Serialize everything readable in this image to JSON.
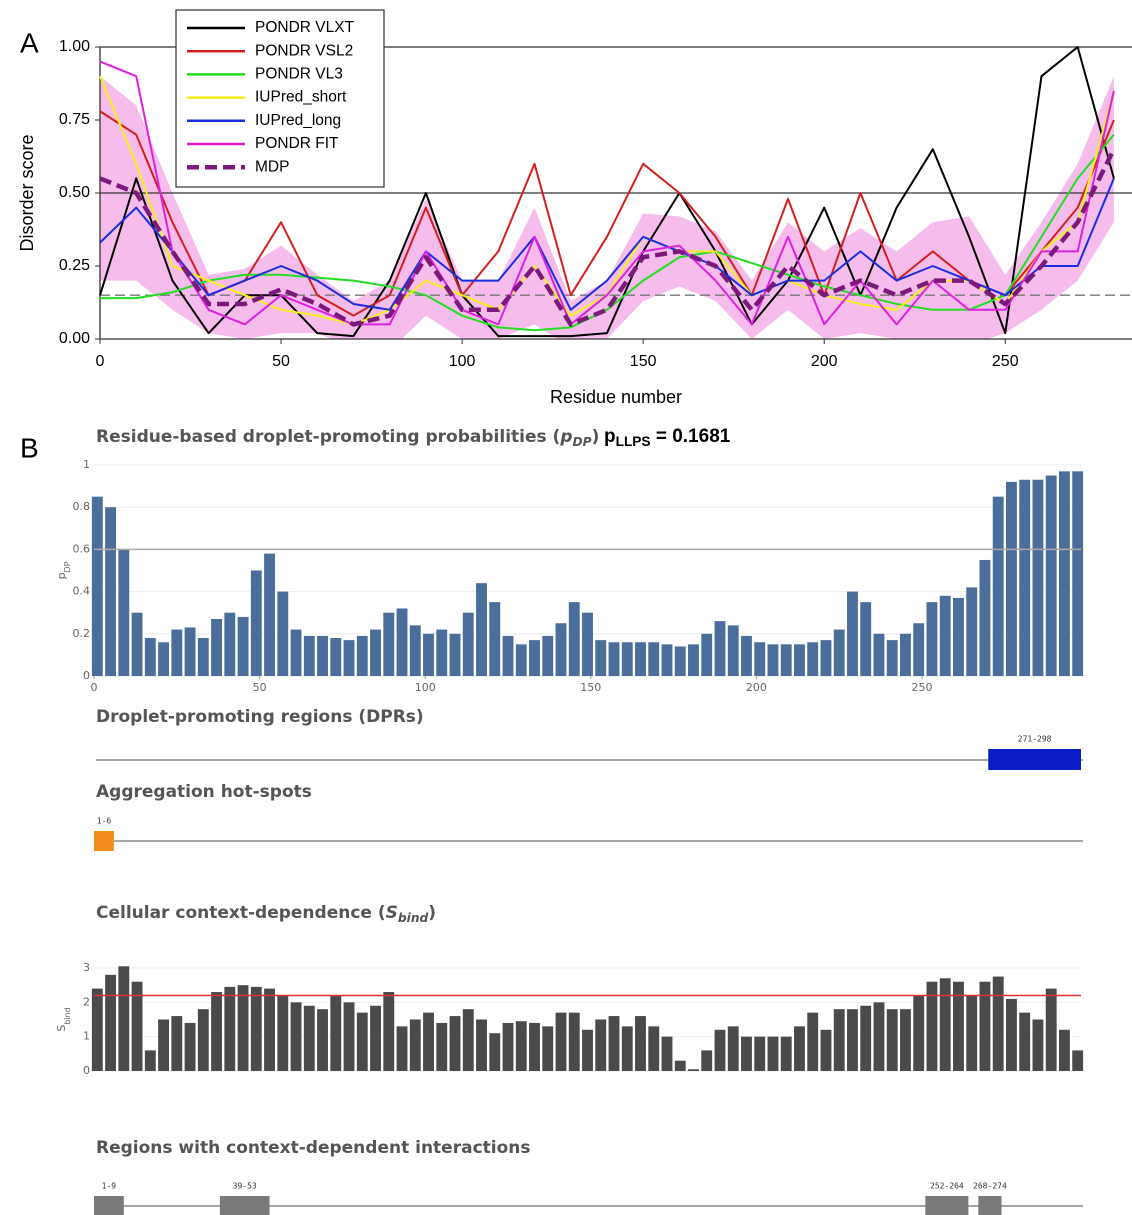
{
  "chart_data": [
    {
      "type": "line",
      "panel": "A",
      "xlabel": "Residue number",
      "ylabel": "Disorder score",
      "xlim": [
        0,
        285
      ],
      "ylim": [
        0,
        1
      ],
      "xticks": [
        0,
        50,
        100,
        150,
        200,
        250
      ],
      "yticks": [
        {
          "value": 0,
          "label": "0.00"
        },
        {
          "value": 0.25,
          "label": "0.25"
        },
        {
          "value": 0.5,
          "label": "0.50"
        },
        {
          "value": 0.75,
          "label": "0.75"
        },
        {
          "value": 1,
          "label": "1.00"
        }
      ],
      "reference_lines": [
        0.5,
        0.15
      ],
      "reference_styles": [
        "solid",
        "dashed"
      ],
      "band_color": "#f6bdec",
      "x": [
        0,
        10,
        20,
        30,
        40,
        50,
        60,
        70,
        80,
        90,
        100,
        110,
        120,
        130,
        140,
        150,
        160,
        170,
        180,
        190,
        200,
        210,
        220,
        230,
        240,
        250,
        260,
        270,
        280
      ],
      "series": [
        {
          "name": "PONDR VLXT",
          "color": "#000000",
          "values": [
            0.15,
            0.55,
            0.2,
            0.02,
            0.15,
            0.15,
            0.02,
            0.01,
            0.2,
            0.5,
            0.15,
            0.01,
            0.01,
            0.01,
            0.02,
            0.3,
            0.5,
            0.3,
            0.05,
            0.2,
            0.45,
            0.15,
            0.45,
            0.65,
            0.35,
            0.02,
            0.9,
            1.0,
            0.55
          ]
        },
        {
          "name": "PONDR VSL2",
          "color": "#d41f1f",
          "values": [
            0.78,
            0.7,
            0.4,
            0.15,
            0.2,
            0.4,
            0.15,
            0.08,
            0.15,
            0.45,
            0.15,
            0.3,
            0.6,
            0.15,
            0.35,
            0.6,
            0.5,
            0.35,
            0.15,
            0.48,
            0.15,
            0.5,
            0.2,
            0.3,
            0.2,
            0.15,
            0.3,
            0.45,
            0.75
          ]
        },
        {
          "name": "PONDR VL3",
          "color": "#22dd22",
          "values": [
            0.14,
            0.14,
            0.16,
            0.2,
            0.22,
            0.22,
            0.21,
            0.2,
            0.18,
            0.15,
            0.08,
            0.04,
            0.03,
            0.04,
            0.1,
            0.2,
            0.28,
            0.3,
            0.26,
            0.22,
            0.18,
            0.15,
            0.12,
            0.1,
            0.1,
            0.15,
            0.35,
            0.55,
            0.7
          ]
        },
        {
          "name": "IUPred_short",
          "color": "#f5f01a",
          "values": [
            0.9,
            0.6,
            0.25,
            0.2,
            0.15,
            0.1,
            0.08,
            0.05,
            0.1,
            0.2,
            0.15,
            0.1,
            0.25,
            0.08,
            0.15,
            0.35,
            0.3,
            0.3,
            0.15,
            0.2,
            0.15,
            0.12,
            0.1,
            0.2,
            0.2,
            0.12,
            0.3,
            0.4,
            0.85
          ]
        },
        {
          "name": "IUPred_long",
          "color": "#1a2ee0",
          "values": [
            0.33,
            0.45,
            0.3,
            0.15,
            0.2,
            0.25,
            0.2,
            0.12,
            0.1,
            0.3,
            0.2,
            0.2,
            0.35,
            0.1,
            0.2,
            0.35,
            0.3,
            0.25,
            0.15,
            0.2,
            0.2,
            0.3,
            0.2,
            0.25,
            0.2,
            0.15,
            0.25,
            0.25,
            0.55
          ]
        },
        {
          "name": "PONDR FIT",
          "color": "#e020e0",
          "values": [
            0.95,
            0.9,
            0.3,
            0.1,
            0.05,
            0.15,
            0.1,
            0.05,
            0.05,
            0.3,
            0.1,
            0.05,
            0.35,
            0.05,
            0.15,
            0.3,
            0.32,
            0.2,
            0.05,
            0.35,
            0.05,
            0.2,
            0.05,
            0.2,
            0.1,
            0.1,
            0.3,
            0.3,
            0.85
          ]
        },
        {
          "name": "MDP",
          "color": "#7b1a7b",
          "line_style": "dashed",
          "values": [
            0.55,
            0.5,
            0.3,
            0.12,
            0.12,
            0.17,
            0.12,
            0.05,
            0.08,
            0.28,
            0.1,
            0.1,
            0.25,
            0.05,
            0.1,
            0.28,
            0.3,
            0.25,
            0.1,
            0.25,
            0.15,
            0.2,
            0.15,
            0.2,
            0.2,
            0.12,
            0.25,
            0.4,
            0.65
          ],
          "error": [
            0.35,
            0.3,
            0.2,
            0.1,
            0.12,
            0.15,
            0.1,
            0.08,
            0.12,
            0.2,
            0.1,
            0.1,
            0.2,
            0.08,
            0.1,
            0.15,
            0.12,
            0.12,
            0.1,
            0.15,
            0.15,
            0.18,
            0.15,
            0.2,
            0.22,
            0.1,
            0.15,
            0.2,
            0.25
          ]
        }
      ]
    },
    {
      "type": "bar",
      "panel": "B",
      "title_parts": [
        {
          "text": "Residue-based droplet-promoting probabilities (",
          "style": "normal"
        },
        {
          "text": "p",
          "style": "italic"
        },
        {
          "text": "DP",
          "style": "italic-sub"
        },
        {
          "text": ")",
          "style": "normal"
        }
      ],
      "annotation_parts": [
        {
          "text": "p",
          "style": "normal"
        },
        {
          "text": "LLPS",
          "style": "sub"
        },
        {
          "text": " = 0.1681",
          "style": "normal"
        }
      ],
      "ylabel_parts": [
        {
          "text": "p",
          "style": "normal"
        },
        {
          "text": "DP",
          "style": "sub"
        }
      ],
      "xlim": [
        0,
        298
      ],
      "ylim": [
        0,
        1
      ],
      "xticks": [
        0,
        50,
        100,
        150,
        200,
        250
      ],
      "yticks": [
        0,
        0.2,
        0.4,
        0.6,
        0.8,
        1
      ],
      "threshold": 0.6,
      "threshold_color": "#aaaaaa",
      "color": "#4a6d9a",
      "grid": true,
      "x": [
        1,
        5,
        9,
        13,
        17,
        21,
        25,
        29,
        33,
        37,
        41,
        45,
        49,
        53,
        57,
        61,
        65,
        69,
        73,
        77,
        81,
        85,
        89,
        93,
        97,
        101,
        105,
        109,
        113,
        117,
        121,
        125,
        129,
        133,
        137,
        141,
        145,
        149,
        153,
        157,
        161,
        165,
        169,
        173,
        177,
        181,
        185,
        189,
        193,
        197,
        201,
        205,
        209,
        213,
        217,
        221,
        225,
        229,
        233,
        237,
        241,
        245,
        249,
        253,
        257,
        261,
        265,
        269,
        273,
        277,
        281,
        285,
        289,
        293,
        297
      ],
      "values": [
        0.85,
        0.8,
        0.6,
        0.3,
        0.18,
        0.16,
        0.22,
        0.23,
        0.18,
        0.27,
        0.3,
        0.28,
        0.5,
        0.58,
        0.4,
        0.22,
        0.19,
        0.19,
        0.18,
        0.17,
        0.19,
        0.22,
        0.3,
        0.32,
        0.24,
        0.2,
        0.22,
        0.2,
        0.3,
        0.44,
        0.35,
        0.19,
        0.15,
        0.17,
        0.19,
        0.25,
        0.35,
        0.3,
        0.17,
        0.16,
        0.16,
        0.16,
        0.16,
        0.15,
        0.14,
        0.15,
        0.2,
        0.26,
        0.24,
        0.19,
        0.16,
        0.15,
        0.15,
        0.15,
        0.16,
        0.17,
        0.22,
        0.4,
        0.35,
        0.2,
        0.17,
        0.2,
        0.25,
        0.35,
        0.38,
        0.37,
        0.42,
        0.55,
        0.85,
        0.92,
        0.93,
        0.93,
        0.95,
        0.97,
        0.97
      ]
    },
    {
      "type": "track",
      "title": "Droplet-promoting regions (DPRs)",
      "xlim": [
        0,
        298
      ],
      "color": "#0a1cc4",
      "regions": [
        {
          "label": "271-298",
          "start": 271,
          "end": 298
        }
      ]
    },
    {
      "type": "track",
      "title": "Aggregation hot-spots",
      "xlim": [
        0,
        298
      ],
      "color": "#f28c1e",
      "regions": [
        {
          "label": "1-6",
          "start": 1,
          "end": 6
        }
      ]
    },
    {
      "type": "bar",
      "title_parts": [
        {
          "text": "Cellular context-dependence (",
          "style": "normal"
        },
        {
          "text": "S",
          "style": "italic"
        },
        {
          "text": "bind",
          "style": "italic-sub"
        },
        {
          "text": ")",
          "style": "normal"
        }
      ],
      "ylabel_parts": [
        {
          "text": "S",
          "style": "normal"
        },
        {
          "text": "bind",
          "style": "sub"
        }
      ],
      "xlim": [
        0,
        298
      ],
      "ylim": [
        0,
        3
      ],
      "yticks": [
        0,
        1,
        2,
        3
      ],
      "threshold": 2.2,
      "threshold_color": "#e03030",
      "color": "#4a4a4a",
      "grid": true,
      "x": [
        1,
        5,
        9,
        13,
        17,
        21,
        25,
        29,
        33,
        37,
        41,
        45,
        49,
        53,
        57,
        61,
        65,
        69,
        73,
        77,
        81,
        85,
        89,
        93,
        97,
        101,
        105,
        109,
        113,
        117,
        121,
        125,
        129,
        133,
        137,
        141,
        145,
        149,
        153,
        157,
        161,
        165,
        169,
        173,
        177,
        181,
        185,
        189,
        193,
        197,
        201,
        205,
        209,
        213,
        217,
        221,
        225,
        229,
        233,
        237,
        241,
        245,
        249,
        253,
        257,
        261,
        265,
        269,
        273,
        277,
        281,
        285,
        289,
        293,
        297
      ],
      "values": [
        2.4,
        2.8,
        3.05,
        2.6,
        0.6,
        1.5,
        1.6,
        1.4,
        1.8,
        2.3,
        2.45,
        2.5,
        2.45,
        2.4,
        2.2,
        2.0,
        1.9,
        1.8,
        2.2,
        2.0,
        1.7,
        1.9,
        2.3,
        1.3,
        1.5,
        1.7,
        1.4,
        1.6,
        1.8,
        1.5,
        1.1,
        1.4,
        1.45,
        1.4,
        1.3,
        1.7,
        1.7,
        1.2,
        1.5,
        1.6,
        1.3,
        1.6,
        1.3,
        1.0,
        0.3,
        0.05,
        0.6,
        1.2,
        1.3,
        1.0,
        1.0,
        1.0,
        1.0,
        1.3,
        1.7,
        1.2,
        1.8,
        1.8,
        1.9,
        2.0,
        1.8,
        1.8,
        2.2,
        2.6,
        2.7,
        2.6,
        2.2,
        2.6,
        2.75,
        2.1,
        1.7,
        1.5,
        2.4,
        1.2,
        0.6
      ]
    },
    {
      "type": "track",
      "title": "Regions with context-dependent interactions",
      "xlim": [
        0,
        298
      ],
      "color": "#7a7a7a",
      "regions": [
        {
          "label": "1-9",
          "start": 1,
          "end": 9
        },
        {
          "label": "39-53",
          "start": 39,
          "end": 53
        },
        {
          "label": "252-264",
          "start": 252,
          "end": 264
        },
        {
          "label": "268-274",
          "start": 268,
          "end": 274
        }
      ]
    }
  ]
}
